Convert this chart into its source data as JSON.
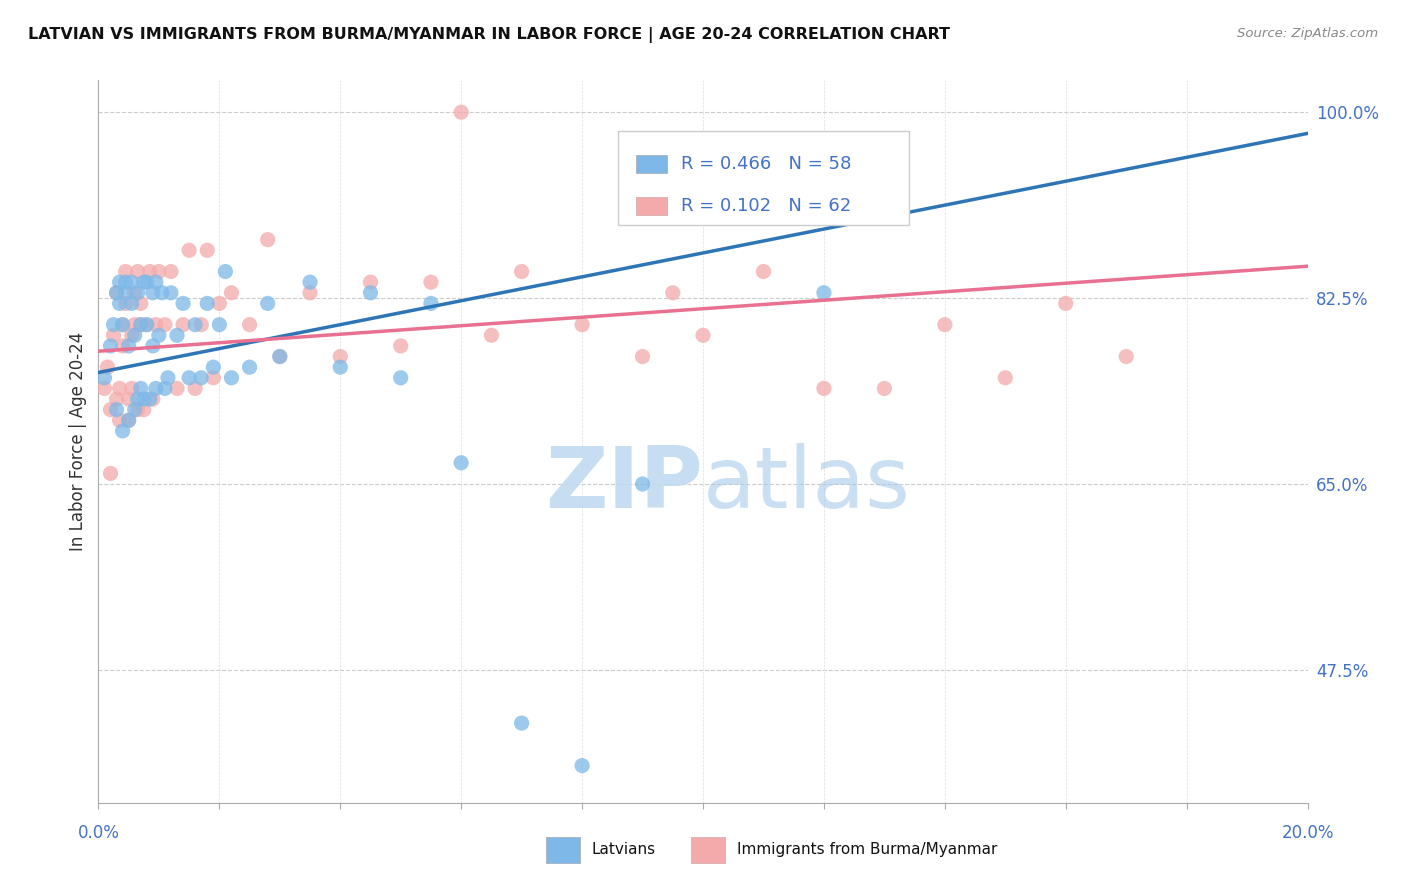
{
  "title": "LATVIAN VS IMMIGRANTS FROM BURMA/MYANMAR IN LABOR FORCE | AGE 20-24 CORRELATION CHART",
  "source": "Source: ZipAtlas.com",
  "ylabel": "In Labor Force | Age 20-24",
  "legend_latvians": "Latvians",
  "legend_burma": "Immigrants from Burma/Myanmar",
  "blue_R": "R = 0.466",
  "blue_N": "N = 58",
  "pink_R": "R = 0.102",
  "pink_N": "N = 62",
  "blue_color": "#7DB8E8",
  "pink_color": "#F4AAAA",
  "blue_line_color": "#2E75B6",
  "pink_line_color": "#E87090",
  "watermark_zip": "ZIP",
  "watermark_atlas": "atlas",
  "xmin": 0.0,
  "xmax": 20.0,
  "ymin": 35.0,
  "ymax": 103.0,
  "ytick_values": [
    100.0,
    82.5,
    65.0,
    47.5
  ],
  "ytick_labels": [
    "100.0%",
    "82.5%",
    "65.0%",
    "47.5%"
  ],
  "blue_line_x0": 0.0,
  "blue_line_x1": 20.0,
  "blue_line_y0": 75.5,
  "blue_line_y1": 98.0,
  "pink_line_x0": 0.0,
  "pink_line_x1": 20.0,
  "pink_line_y0": 77.5,
  "pink_line_y1": 85.5,
  "blue_scatter_x": [
    0.1,
    0.2,
    0.25,
    0.3,
    0.3,
    0.35,
    0.35,
    0.4,
    0.4,
    0.45,
    0.45,
    0.5,
    0.5,
    0.55,
    0.55,
    0.6,
    0.6,
    0.65,
    0.65,
    0.7,
    0.7,
    0.75,
    0.75,
    0.8,
    0.8,
    0.85,
    0.9,
    0.9,
    0.95,
    0.95,
    1.0,
    1.05,
    1.1,
    1.15,
    1.2,
    1.3,
    1.4,
    1.5,
    1.6,
    1.7,
    1.8,
    1.9,
    2.0,
    2.1,
    2.2,
    2.5,
    2.8,
    3.0,
    3.5,
    4.0,
    4.5,
    5.0,
    5.5,
    6.0,
    7.0,
    8.0,
    9.0,
    12.0
  ],
  "blue_scatter_y": [
    75.0,
    78.0,
    80.0,
    72.0,
    83.0,
    82.0,
    84.0,
    70.0,
    80.0,
    83.0,
    84.0,
    71.0,
    78.0,
    82.0,
    84.0,
    72.0,
    79.0,
    83.0,
    73.0,
    74.0,
    80.0,
    84.0,
    73.0,
    80.0,
    84.0,
    73.0,
    78.0,
    83.0,
    74.0,
    84.0,
    79.0,
    83.0,
    74.0,
    75.0,
    83.0,
    79.0,
    82.0,
    75.0,
    80.0,
    75.0,
    82.0,
    76.0,
    80.0,
    85.0,
    75.0,
    76.0,
    82.0,
    77.0,
    84.0,
    76.0,
    83.0,
    75.0,
    82.0,
    67.0,
    42.5,
    38.5,
    65.0,
    83.0
  ],
  "pink_scatter_x": [
    0.1,
    0.15,
    0.2,
    0.25,
    0.3,
    0.35,
    0.4,
    0.45,
    0.5,
    0.55,
    0.6,
    0.65,
    0.7,
    0.75,
    0.8,
    0.85,
    0.9,
    0.95,
    1.0,
    1.1,
    1.2,
    1.3,
    1.4,
    1.5,
    1.6,
    1.7,
    1.8,
    1.9,
    2.0,
    2.2,
    2.5,
    2.8,
    3.0,
    3.5,
    4.0,
    4.5,
    5.0,
    5.5,
    6.0,
    6.5,
    7.0,
    8.0,
    9.0,
    9.5,
    10.0,
    11.0,
    12.0,
    13.0,
    14.0,
    15.0,
    16.0,
    0.3,
    0.35,
    0.4,
    0.45,
    0.5,
    0.55,
    0.6,
    0.65,
    0.7,
    17.0,
    0.2
  ],
  "pink_scatter_y": [
    74.0,
    76.0,
    72.0,
    79.0,
    83.0,
    71.0,
    78.0,
    82.0,
    71.0,
    79.0,
    83.0,
    72.0,
    80.0,
    72.0,
    80.0,
    85.0,
    73.0,
    80.0,
    85.0,
    80.0,
    85.0,
    74.0,
    80.0,
    87.0,
    74.0,
    80.0,
    87.0,
    75.0,
    82.0,
    83.0,
    80.0,
    88.0,
    77.0,
    83.0,
    77.0,
    84.0,
    78.0,
    84.0,
    100.0,
    79.0,
    85.0,
    80.0,
    77.0,
    83.0,
    79.0,
    85.0,
    74.0,
    74.0,
    80.0,
    75.0,
    82.0,
    73.0,
    74.0,
    80.0,
    85.0,
    73.0,
    74.0,
    80.0,
    85.0,
    82.0,
    77.0,
    66.0
  ]
}
